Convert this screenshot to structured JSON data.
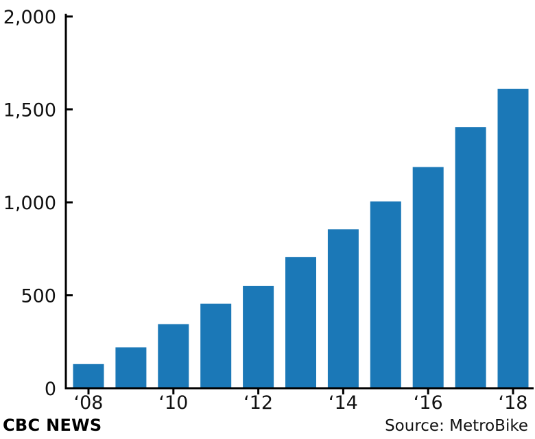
{
  "chart_data": {
    "type": "bar",
    "categories": [
      "2008",
      "2009",
      "2010",
      "2011",
      "2012",
      "2013",
      "2014",
      "2015",
      "2016",
      "2017",
      "2018"
    ],
    "values": [
      130,
      220,
      345,
      455,
      550,
      705,
      855,
      1005,
      1190,
      1405,
      1610
    ],
    "ylim": [
      0,
      2000
    ],
    "yticks": [
      0,
      500,
      1000,
      1500,
      2000
    ],
    "ytick_labels": [
      "0",
      "500",
      "1,000",
      "1,500",
      "2,000"
    ],
    "xtick_labels": [
      "‘08",
      "‘10",
      "‘12",
      "‘14",
      "‘16",
      "‘18"
    ],
    "grid": false,
    "bar_color": "#1b78b7",
    "title": "",
    "xlabel": "",
    "ylabel": ""
  },
  "footer": {
    "brand": "CBC NEWS",
    "source": "Source: MetroBike"
  }
}
